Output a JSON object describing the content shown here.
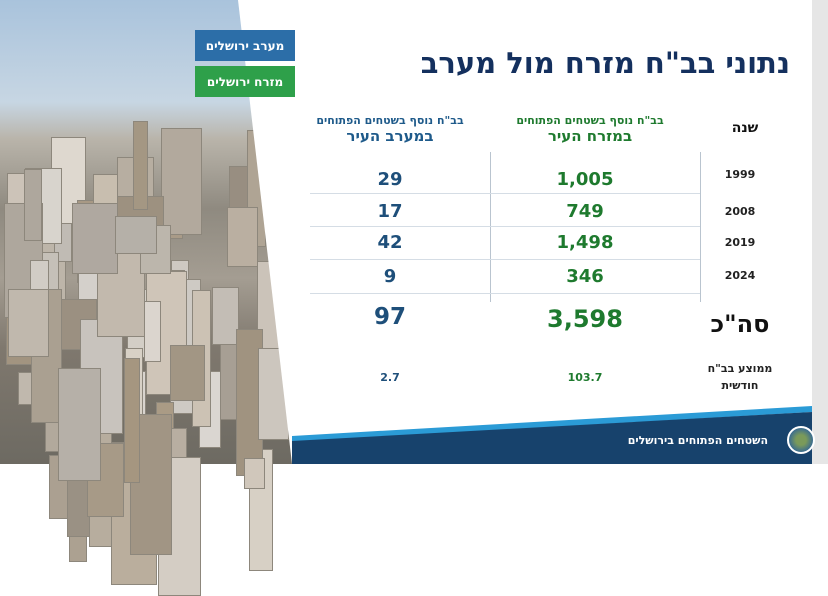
{
  "buttons": {
    "west": "מערב ירושלים",
    "east": "מזרח ירושלים"
  },
  "colors": {
    "west": "#2c6ea8",
    "east": "#2ea04a",
    "title": "#14305e",
    "footer": "#17426c"
  },
  "title": "נתוני בב\"ח מזרח מול מערב",
  "headers": {
    "year": "שנה",
    "east_small": "בב\"ח נוסף בשטחים הפתוחים",
    "east_large": "במזרח העיר",
    "west_small": "בב\"ח נוסף בשטחים הפתוחים",
    "west_large": "במערב העיר"
  },
  "rows": [
    {
      "year": "1999",
      "east": "1,005",
      "west": "29"
    },
    {
      "year": "2008",
      "east": "749",
      "west": "17"
    },
    {
      "year": "2019",
      "east": "1,498",
      "west": "42"
    },
    {
      "year": "2024",
      "east": "346",
      "west": "9"
    }
  ],
  "total": {
    "label": "סה\"כ",
    "east": "3,598",
    "west": "97"
  },
  "average": {
    "label1": "ממוצע בב\"ח",
    "label2": "חודשית",
    "east": "103.7",
    "west": "2.7"
  },
  "footer": {
    "text": "השטחים הפתוחים בירושלים",
    "logo_icon": "emblem-icon"
  }
}
